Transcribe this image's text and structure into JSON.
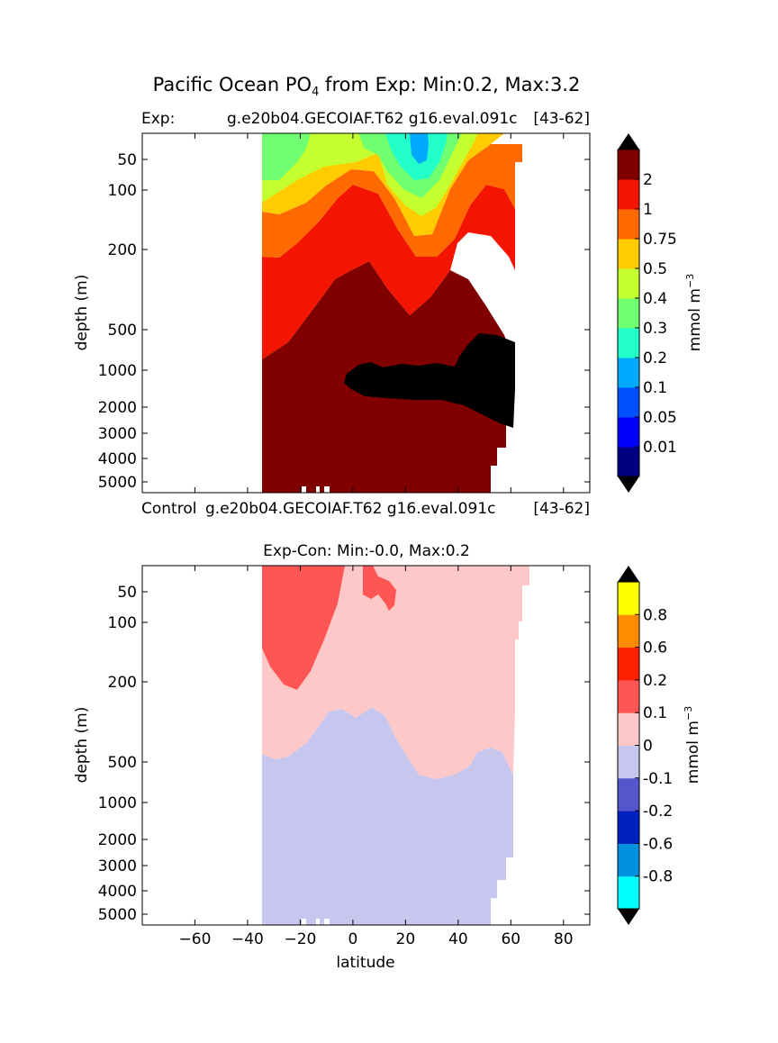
{
  "figure": {
    "title_prefix": "Pacific Ocean PO",
    "title_subscript": "4",
    "title_suffix": " from Exp: Min:0.2, Max:3.2",
    "exp_label": "Exp:",
    "exp_case": "g.e20b04.GECOIAF.T62 g16.eval.091c",
    "exp_range": "[43-62]",
    "control_label": "Control",
    "control_case": "g.e20b04.GECOIAF.T62 g16.eval.091c",
    "control_range": "[43-62]",
    "diff_title": "Exp-Con: Min:-0.0, Max:0.2",
    "ylabel": "depth (m)",
    "xlabel": "latitude",
    "cbar_units": "mmol m",
    "cbar_units_exp": "−3"
  },
  "chart_data": [
    {
      "type": "contourf",
      "panel": "Exp",
      "x_range": [
        -80,
        90
      ],
      "y_range": [
        0,
        5500
      ],
      "y_scale": "piecewise-depth",
      "y_ticks": [
        "50",
        "100",
        "200",
        "500",
        "1000",
        "2000",
        "3000",
        "4000",
        "5000"
      ],
      "y_tick_values": [
        50,
        100,
        200,
        500,
        1000,
        2000,
        3000,
        4000,
        5000
      ],
      "levels": [
        "0.01",
        "0.05",
        "0.1",
        "0.2",
        "0.3",
        "0.4",
        "0.5",
        "0.75",
        "1",
        "2"
      ],
      "colors": [
        "#000080",
        "#0000ff",
        "#0050ff",
        "#00aaff",
        "#22ffc8",
        "#70ff70",
        "#c4ff30",
        "#ffcc00",
        "#ff6a00",
        "#f31500",
        "#800000"
      ],
      "over_color": "#000000",
      "under_color": "#000000"
    },
    {
      "type": "contourf",
      "panel": "Exp-Con",
      "x_range": [
        -80,
        90
      ],
      "x_ticks": [
        "−60",
        "−40",
        "−20",
        "0",
        "20",
        "40",
        "60",
        "80"
      ],
      "x_tick_values": [
        -60,
        -40,
        -20,
        0,
        20,
        40,
        60,
        80
      ],
      "y_range": [
        0,
        5500
      ],
      "y_scale": "piecewise-depth",
      "y_ticks": [
        "50",
        "100",
        "200",
        "500",
        "1000",
        "2000",
        "3000",
        "4000",
        "5000"
      ],
      "y_tick_values": [
        50,
        100,
        200,
        500,
        1000,
        2000,
        3000,
        4000,
        5000
      ],
      "levels": [
        "-0.8",
        "-0.6",
        "-0.2",
        "-0.1",
        "0",
        "0.1",
        "0.2",
        "0.6",
        "0.8"
      ],
      "colors": [
        "#00ffff",
        "#0090e0",
        "#0020c0",
        "#5555cc",
        "#c6c6ee",
        "#ffc8c8",
        "#ff5555",
        "#ff2000",
        "#ff8c00",
        "#ffff00"
      ],
      "over_color": "#000000",
      "under_color": "#000000"
    }
  ]
}
